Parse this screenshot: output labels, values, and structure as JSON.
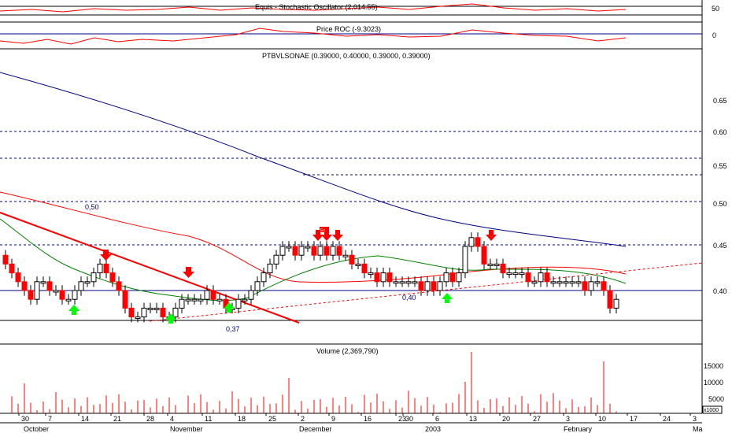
{
  "panels": {
    "equis_title": "Equis - Stochastic Oscillator (2,014.55)",
    "roc_title": "Price ROC (-9.3023)",
    "price_title": "PTBVLSONAE (0.39000, 0.40000, 0.39000, 0.39000)",
    "volume_title": "Volume (2,369,790)"
  },
  "colors": {
    "up": "#ffffff",
    "down": "#ff0000",
    "ma_long": "#000080",
    "ma_mid": "#ff0000",
    "ma_short": "#008000",
    "trend": "#ff0000",
    "support": "#000080",
    "grid": "#000080",
    "signal_up": "#00ff00",
    "signal_down": "#ff0000"
  },
  "chart_data": {
    "type": "candlestick",
    "price_axis": {
      "ticks": [
        "0.65",
        "0.60",
        "0.55",
        "0.50",
        "0.45",
        "0.40"
      ],
      "ylim": [
        0.335,
        0.705
      ]
    },
    "equis_axis": {
      "ticks": [
        "50"
      ]
    },
    "roc_axis": {
      "ticks": [
        "0"
      ]
    },
    "volume_axis": {
      "ticks": [
        "15000",
        "10000",
        "5000"
      ],
      "unit_label": "x1000"
    },
    "x_day_ticks": [
      "30",
      "7",
      "14",
      "21",
      "28",
      "4",
      "11",
      "18",
      "25",
      "2",
      "9",
      "16",
      "23",
      "30",
      "6",
      "13",
      "20",
      "27",
      "3",
      "10",
      "17",
      "24",
      "3"
    ],
    "x_month_labels": [
      "October",
      "November",
      "December",
      "2003",
      "February",
      "Ma"
    ],
    "grid_levels": [
      0.6,
      0.56,
      0.5,
      0.45
    ],
    "support_levels": [
      0.4,
      0.365
    ],
    "annotations": [
      "0,50",
      "0,37",
      "0,40",
      "Ex"
    ],
    "series_close": [
      0.43,
      0.42,
      0.41,
      0.4,
      0.39,
      0.41,
      0.41,
      0.4,
      0.4,
      0.39,
      0.39,
      0.4,
      0.41,
      0.41,
      0.42,
      0.43,
      0.42,
      0.41,
      0.4,
      0.38,
      0.37,
      0.37,
      0.38,
      0.38,
      0.38,
      0.37,
      0.37,
      0.38,
      0.39,
      0.39,
      0.39,
      0.39,
      0.4,
      0.39,
      0.39,
      0.38,
      0.38,
      0.39,
      0.39,
      0.4,
      0.41,
      0.42,
      0.43,
      0.44,
      0.45,
      0.45,
      0.44,
      0.45,
      0.45,
      0.44,
      0.45,
      0.44,
      0.45,
      0.44,
      0.44,
      0.43,
      0.43,
      0.42,
      0.42,
      0.41,
      0.42,
      0.41,
      0.41,
      0.41,
      0.41,
      0.41,
      0.4,
      0.41,
      0.4,
      0.41,
      0.42,
      0.41,
      0.42,
      0.45,
      0.46,
      0.45,
      0.43,
      0.43,
      0.43,
      0.42,
      0.42,
      0.42,
      0.42,
      0.41,
      0.41,
      0.42,
      0.41,
      0.41,
      0.41,
      0.41,
      0.41,
      0.41,
      0.4,
      0.41,
      0.41,
      0.4,
      0.38,
      0.39
    ]
  }
}
